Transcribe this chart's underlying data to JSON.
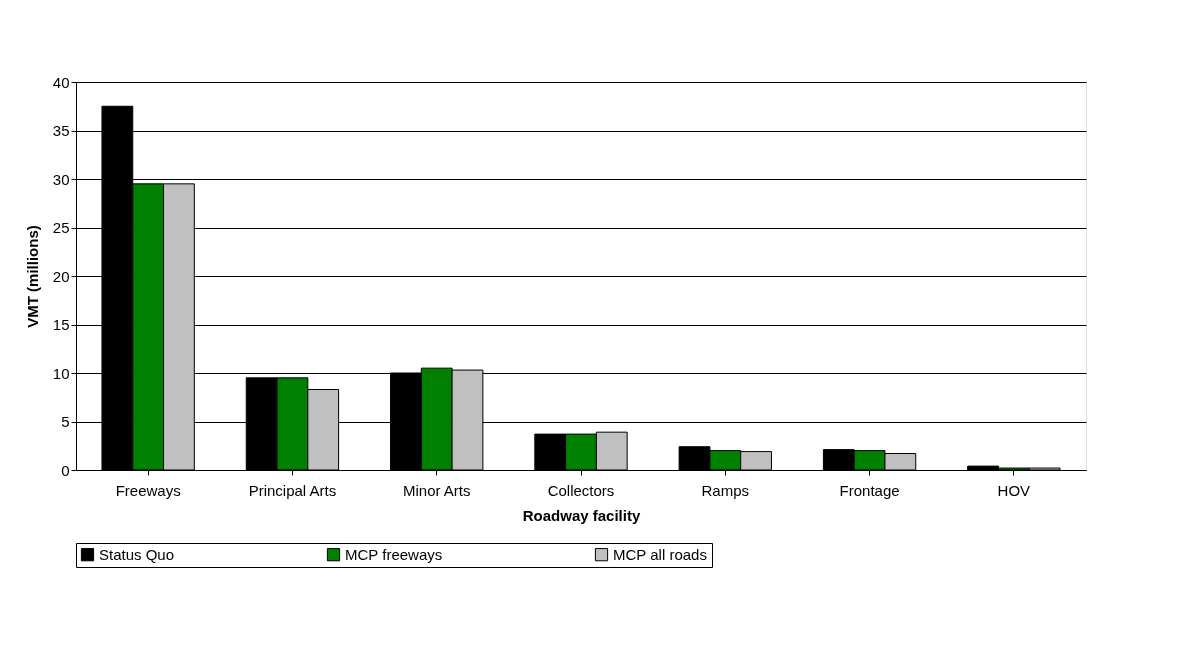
{
  "chart_data": {
    "type": "bar",
    "xlabel": "Roadway facility",
    "ylabel": "VMT (millions)",
    "categories": [
      "Freeways",
      "Principal Arts",
      "Minor Arts",
      "Collectors",
      "Ramps",
      "Frontage",
      "HOV"
    ],
    "series": [
      {
        "name": "Status Quo",
        "color": "#000000",
        "values": [
          37.5,
          9.5,
          10.0,
          3.7,
          2.4,
          2.1,
          0.4
        ]
      },
      {
        "name": "MCP freeways",
        "color": "#008000",
        "values": [
          29.5,
          9.5,
          10.5,
          3.7,
          2.0,
          2.0,
          0.2
        ]
      },
      {
        "name": "MCP all roads",
        "color": "#c0c0c0",
        "values": [
          29.5,
          8.3,
          10.3,
          3.9,
          1.9,
          1.7,
          0.2
        ]
      }
    ],
    "ylim": [
      0,
      40
    ],
    "yticks": [
      0,
      5,
      10,
      15,
      20,
      25,
      30,
      35,
      40
    ],
    "grid": "y",
    "legend": "bottom"
  }
}
